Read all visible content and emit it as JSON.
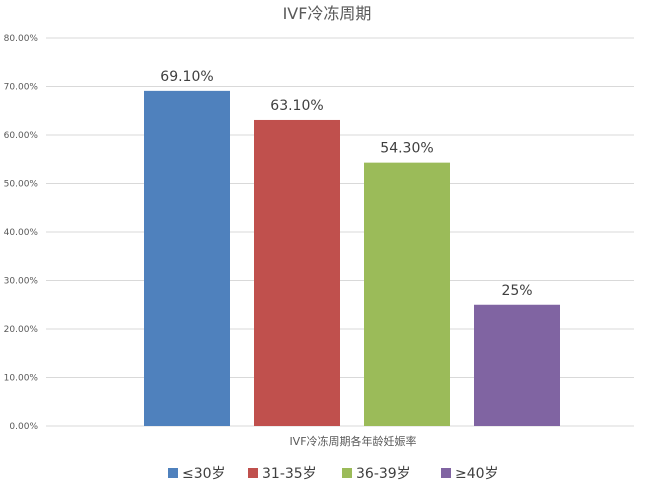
{
  "chart_data": {
    "type": "bar",
    "title": "IVF冷冻周期",
    "category_axis_label": "IVF冷冻周期各年龄妊娠率",
    "ylim": [
      0,
      80
    ],
    "yticks": [
      0,
      10,
      20,
      30,
      40,
      50,
      60,
      70,
      80
    ],
    "ytick_labels": [
      "0.00%",
      "10.00%",
      "20.00%",
      "30.00%",
      "40.00%",
      "50.00%",
      "60.00%",
      "70.00%",
      "80.00%"
    ],
    "grid": true,
    "legend_position": "bottom",
    "series": [
      {
        "name": "≤30岁",
        "value": 69.1,
        "label": "69.10%",
        "color": "#4f81bd"
      },
      {
        "name": "31-35岁",
        "value": 63.1,
        "label": "63.10%",
        "color": "#c0504d"
      },
      {
        "name": "36-39岁",
        "value": 54.3,
        "label": "54.30%",
        "color": "#9bbb59"
      },
      {
        "name": "≥40岁",
        "value": 25,
        "label": "25%",
        "color": "#8064a2"
      }
    ]
  }
}
